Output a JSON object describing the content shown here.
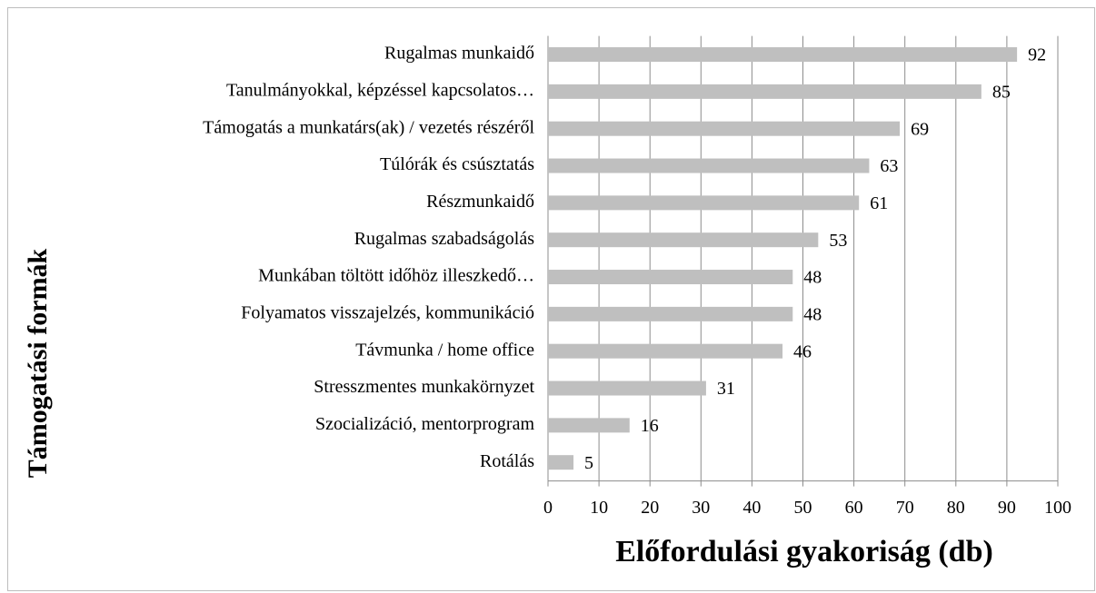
{
  "chart_data": {
    "type": "barh",
    "xlabel": "Előfordulási gyakoriság (db)",
    "ylabel": "Támogatási formák",
    "categories": [
      "Rugalmas munkaidő",
      "Tanulmányokkal, képzéssel kapcsolatos…",
      "Támogatás a munkatárs(ak) / vezetés részéről",
      "Túlórák és csúsztatás",
      "Részmunkaidő",
      "Rugalmas szabadságolás",
      "Munkában töltött időhöz illeszkedő…",
      "Folyamatos visszajelzés, kommunikáció",
      "Távmunka / home office",
      "Stresszmentes munkakörnyzet",
      "Szocializáció, mentorprogram",
      "Rotálás"
    ],
    "values": [
      92,
      85,
      69,
      63,
      61,
      53,
      48,
      48,
      46,
      31,
      16,
      5
    ],
    "color": "#bfbfbf",
    "xlim": [
      0,
      100
    ],
    "xticks": [
      0,
      10,
      20,
      30,
      40,
      50,
      60,
      70,
      80,
      90,
      100
    ],
    "grid": true
  }
}
